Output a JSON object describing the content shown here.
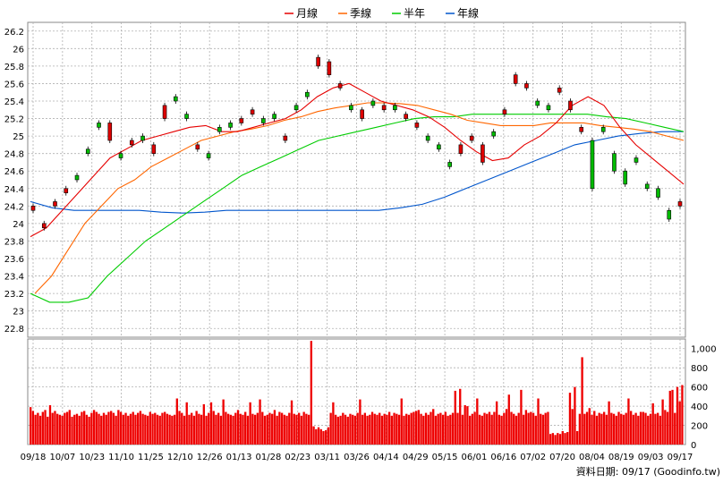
{
  "chart_data": {
    "type": "candlestick",
    "legend": [
      {
        "name": "月線",
        "color": "#e60000"
      },
      {
        "name": "季線",
        "color": "#ff6600"
      },
      {
        "name": "半年",
        "color": "#00cc00"
      },
      {
        "name": "年線",
        "color": "#0055cc"
      }
    ],
    "price_axis": {
      "ticks": [
        "26.2",
        "26",
        "25.8",
        "25.6",
        "25.4",
        "25.2",
        "25",
        "24.8",
        "24.6",
        "24.4",
        "24.2",
        "24",
        "23.8",
        "23.6",
        "23.4",
        "23.2",
        "23",
        "22.8"
      ],
      "ylim": [
        22.7,
        26.3
      ]
    },
    "volume_axis": {
      "ticks": [
        "1,000",
        "800",
        "600",
        "400",
        "200",
        "0"
      ],
      "ylim": [
        0,
        1100
      ]
    },
    "x_ticks": [
      "09/18",
      "10/07",
      "10/23",
      "11/10",
      "11/25",
      "12/10",
      "12/26",
      "01/13",
      "01/28",
      "02/23",
      "03/11",
      "03/26",
      "04/14",
      "04/29",
      "05/15",
      "06/01",
      "06/16",
      "07/02",
      "07/20",
      "08/04",
      "08/19",
      "09/03",
      "09/17"
    ],
    "ma_month": [
      23.85,
      23.95,
      24.15,
      24.35,
      24.55,
      24.75,
      24.85,
      24.95,
      25.0,
      25.05,
      25.1,
      25.12,
      25.05,
      25.05,
      25.1,
      25.15,
      25.2,
      25.3,
      25.45,
      25.55,
      25.6,
      25.5,
      25.4,
      25.35,
      25.3,
      25.22,
      25.1,
      24.95,
      24.82,
      24.72,
      24.75,
      24.9,
      25.0,
      25.15,
      25.35,
      25.45,
      25.35,
      25.1,
      24.9,
      24.75,
      24.6,
      24.45
    ],
    "ma_quarter": [
      23.2,
      23.4,
      23.7,
      24.0,
      24.2,
      24.4,
      24.5,
      24.65,
      24.75,
      24.85,
      24.95,
      25.0,
      25.05,
      25.08,
      25.12,
      25.18,
      25.22,
      25.28,
      25.32,
      25.35,
      25.38,
      25.38,
      25.37,
      25.35,
      25.3,
      25.25,
      25.18,
      25.15,
      25.12,
      25.12,
      25.12,
      25.15,
      25.15,
      25.15,
      25.12,
      25.1,
      25.08,
      25.05,
      25.0,
      24.95
    ],
    "ma_half": [
      23.2,
      23.1,
      23.1,
      23.15,
      23.4,
      23.6,
      23.8,
      23.95,
      24.1,
      24.25,
      24.4,
      24.55,
      24.65,
      24.75,
      24.85,
      24.95,
      25.0,
      25.05,
      25.1,
      25.15,
      25.2,
      25.22,
      25.22,
      25.25,
      25.25,
      25.25,
      25.25,
      25.25,
      25.25,
      25.25,
      25.22,
      25.2,
      25.15,
      25.1,
      25.05
    ],
    "ma_year": [
      24.25,
      24.18,
      24.15,
      24.15,
      24.15,
      24.15,
      24.13,
      24.12,
      24.13,
      24.15,
      24.15,
      24.15,
      24.15,
      24.15,
      24.15,
      24.15,
      24.15,
      24.18,
      24.22,
      24.3,
      24.4,
      24.5,
      24.6,
      24.7,
      24.8,
      24.9,
      24.95,
      25.0,
      25.03,
      25.05,
      25.05
    ],
    "candles": [
      {
        "o": 24.15,
        "c": 24.2
      },
      {
        "o": 23.95,
        "c": 24.0
      },
      {
        "o": 24.2,
        "c": 24.25
      },
      {
        "o": 24.35,
        "c": 24.4
      },
      {
        "o": 24.55,
        "c": 24.5
      },
      {
        "o": 24.85,
        "c": 24.8
      },
      {
        "o": 25.15,
        "c": 25.1
      },
      {
        "o": 24.95,
        "c": 25.15
      },
      {
        "o": 24.8,
        "c": 24.75
      },
      {
        "o": 24.9,
        "c": 24.95
      },
      {
        "o": 25.0,
        "c": 24.95
      },
      {
        "o": 24.8,
        "c": 24.9
      },
      {
        "o": 25.2,
        "c": 25.35
      },
      {
        "o": 25.45,
        "c": 25.4
      },
      {
        "o": 25.25,
        "c": 25.2
      },
      {
        "o": 24.85,
        "c": 24.9
      },
      {
        "o": 24.8,
        "c": 24.75
      },
      {
        "o": 25.1,
        "c": 25.05
      },
      {
        "o": 25.15,
        "c": 25.1
      },
      {
        "o": 25.15,
        "c": 25.2
      },
      {
        "o": 25.25,
        "c": 25.3
      },
      {
        "o": 25.2,
        "c": 25.15
      },
      {
        "o": 25.25,
        "c": 25.2
      },
      {
        "o": 24.95,
        "c": 25.0
      },
      {
        "o": 25.35,
        "c": 25.3
      },
      {
        "o": 25.5,
        "c": 25.45
      },
      {
        "o": 25.8,
        "c": 25.9
      },
      {
        "o": 25.7,
        "c": 25.85
      },
      {
        "o": 25.55,
        "c": 25.6
      },
      {
        "o": 25.35,
        "c": 25.3
      },
      {
        "o": 25.2,
        "c": 25.3
      },
      {
        "o": 25.4,
        "c": 25.35
      },
      {
        "o": 25.3,
        "c": 25.35
      },
      {
        "o": 25.35,
        "c": 25.3
      },
      {
        "o": 25.2,
        "c": 25.25
      },
      {
        "o": 25.1,
        "c": 25.15
      },
      {
        "o": 25.0,
        "c": 24.95
      },
      {
        "o": 24.9,
        "c": 24.85
      },
      {
        "o": 24.7,
        "c": 24.65
      },
      {
        "o": 24.8,
        "c": 24.9
      },
      {
        "o": 24.95,
        "c": 25.0
      },
      {
        "o": 24.7,
        "c": 24.9
      },
      {
        "o": 25.05,
        "c": 25.0
      },
      {
        "o": 25.25,
        "c": 25.3
      },
      {
        "o": 25.6,
        "c": 25.7
      },
      {
        "o": 25.55,
        "c": 25.6
      },
      {
        "o": 25.4,
        "c": 25.35
      },
      {
        "o": 25.35,
        "c": 25.3
      },
      {
        "o": 25.5,
        "c": 25.55
      },
      {
        "o": 25.3,
        "c": 25.4
      },
      {
        "o": 25.05,
        "c": 25.1
      },
      {
        "o": 24.95,
        "c": 24.4
      },
      {
        "o": 25.1,
        "c": 25.05
      },
      {
        "o": 24.8,
        "c": 24.6
      },
      {
        "o": 24.6,
        "c": 24.45
      },
      {
        "o": 24.75,
        "c": 24.7
      },
      {
        "o": 24.45,
        "c": 24.4
      },
      {
        "o": 24.4,
        "c": 24.3
      },
      {
        "o": 24.15,
        "c": 24.05
      },
      {
        "o": 24.2,
        "c": 24.25
      }
    ],
    "volume": [
      390,
      350,
      310,
      330,
      300,
      340,
      360,
      290,
      410,
      330,
      350,
      320,
      310,
      300,
      330,
      340,
      360,
      290,
      310,
      320,
      300,
      340,
      350,
      310,
      290,
      330,
      360,
      340,
      320,
      300,
      330,
      310,
      340,
      350,
      330,
      300,
      360,
      340,
      310,
      330,
      300,
      320,
      340,
      310,
      330,
      350,
      320,
      310,
      300,
      340,
      320,
      330,
      310,
      300,
      330,
      340,
      320,
      310,
      300,
      310,
      480,
      350,
      330,
      300,
      440,
      310,
      330,
      300,
      350,
      320,
      310,
      420,
      300,
      330,
      440,
      350,
      310,
      330,
      300,
      470,
      340,
      320,
      310,
      300,
      330,
      360,
      320,
      310,
      340,
      300,
      440,
      320,
      310,
      330,
      470,
      340,
      300,
      310,
      330,
      320,
      360,
      300,
      340,
      330,
      310,
      300,
      330,
      460,
      320,
      310,
      330,
      300,
      340,
      320,
      310,
      1080,
      190,
      160,
      180,
      160,
      140,
      150,
      180,
      330,
      440,
      310,
      290,
      300,
      330,
      310,
      290,
      320,
      310,
      300,
      330,
      470,
      310,
      330,
      300,
      310,
      340,
      320,
      310,
      330,
      300,
      320,
      310,
      340,
      300,
      330,
      320,
      310,
      480,
      300,
      320,
      310,
      330,
      340,
      350,
      360,
      320,
      300,
      330,
      310,
      340,
      370,
      300,
      320,
      330,
      310,
      340,
      300,
      310,
      330,
      560,
      330,
      580,
      310,
      410,
      400,
      300,
      320,
      340,
      480,
      310,
      300,
      330,
      320,
      340,
      310,
      340,
      450,
      310,
      300,
      330,
      370,
      520,
      340,
      320,
      300,
      330,
      570,
      310,
      360,
      330,
      340,
      330,
      300,
      480,
      320,
      310,
      330,
      340,
      110,
      120,
      100,
      120,
      110,
      140,
      120,
      130,
      540,
      370,
      600,
      140,
      320,
      910,
      320,
      340,
      380,
      310,
      350,
      300,
      330,
      320,
      340,
      310,
      450,
      330,
      320,
      300,
      340,
      320,
      310,
      330,
      480,
      350,
      310,
      330,
      300,
      340,
      340,
      330,
      300,
      320,
      430,
      320,
      330,
      300,
      470,
      360,
      340,
      560,
      570,
      330,
      600,
      450,
      620
    ]
  },
  "footer": {
    "source": "資料日期: 09/17  (Goodinfo.tw)"
  }
}
